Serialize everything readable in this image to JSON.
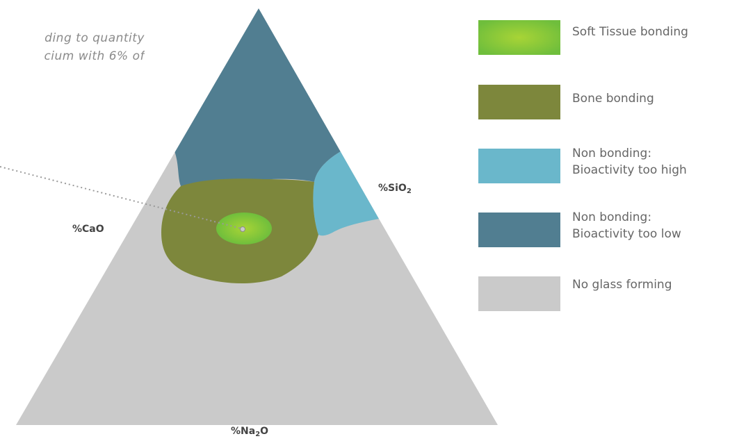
{
  "caption": {
    "line1": "ding to quantity",
    "line2": "cium with 6% of"
  },
  "axes": {
    "sio2": {
      "base": "%SiO",
      "sub": "2",
      "tail": ""
    },
    "cao": {
      "base": "%CaO",
      "sub": "",
      "tail": ""
    },
    "na2o": {
      "base": "%Na",
      "sub": "2",
      "tail": "O"
    }
  },
  "legend": [
    {
      "line1": "Soft Tissue bonding",
      "line2": "",
      "color": "#9acd32"
    },
    {
      "line1": "Bone bonding",
      "line2": "",
      "color": "#7d873c"
    },
    {
      "line1": "Non bonding:",
      "line2": "Bioactivity too high",
      "color": "#6ab7cb"
    },
    {
      "line1": "Non bonding:",
      "line2": "Bioactivity too low",
      "color": "#517e91"
    },
    {
      "line1": "No glass forming",
      "line2": "",
      "color": "#cacaca"
    }
  ],
  "colors": {
    "no_glass": "#cacaca",
    "too_low": "#517e91",
    "too_high": "#6ab7cb",
    "bone": "#7d873c",
    "soft_center": "#a8d436",
    "soft_edge": "#6fbe3c",
    "leader_line": "#9a9a9a"
  },
  "icons": {
    "marker": "dot-marker-icon"
  }
}
